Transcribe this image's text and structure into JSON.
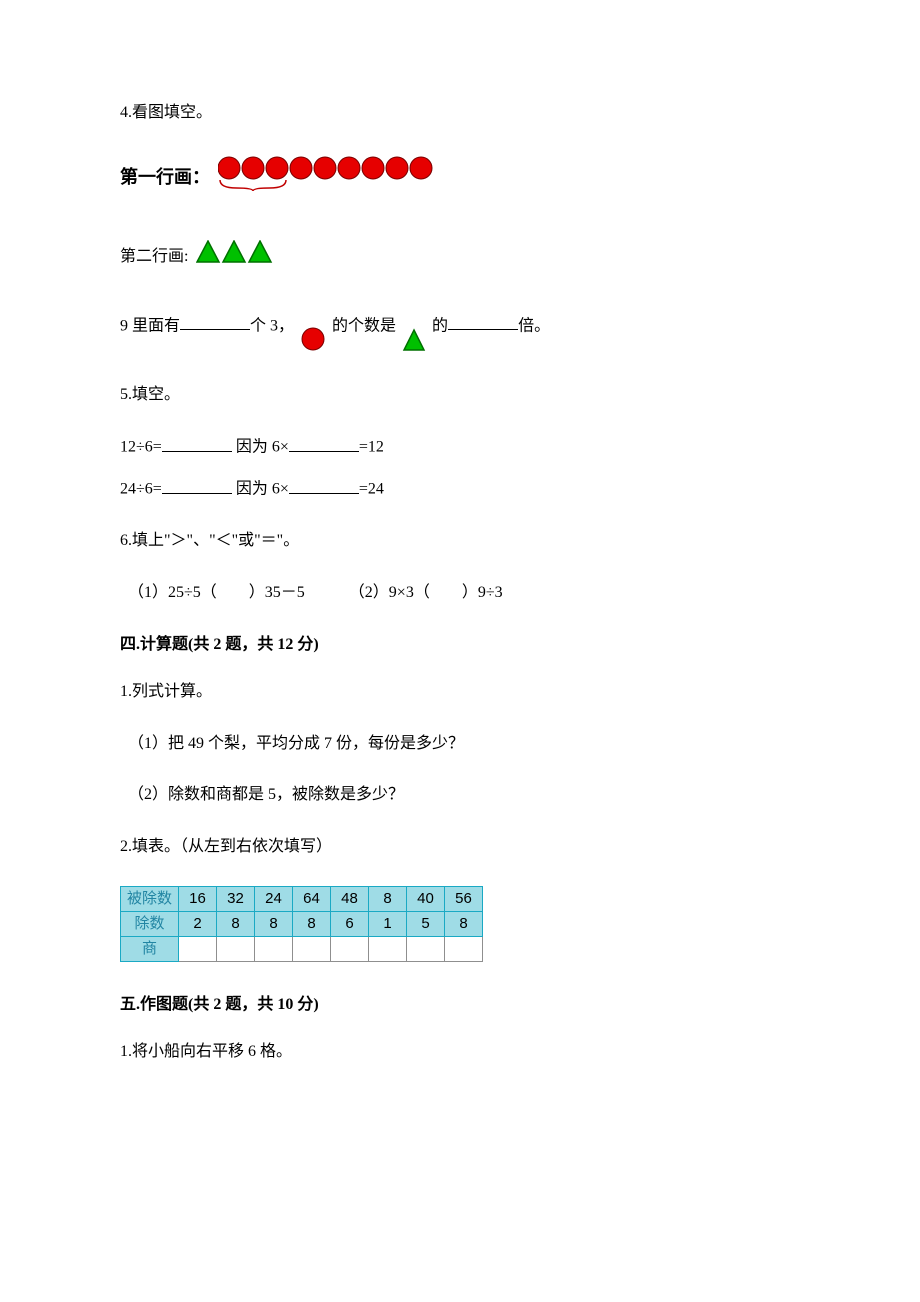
{
  "q4": {
    "number": "4.",
    "title": "看图填空。",
    "row1_label": "第一行画：",
    "row1_circle_count": 9,
    "row1_group_size": 3,
    "row2_label": "第二行画:",
    "row2_tri_count": 3,
    "sentence_p1": "9 里面有",
    "sentence_p2": "个 3，",
    "sentence_p3": "的个数是",
    "sentence_p4": "的",
    "sentence_p5": "倍。",
    "circle_fill": "#e60000",
    "circle_stroke": "#7a0000",
    "tri_fill": "#00c000",
    "tri_stroke": "#007000",
    "brace_color": "#c00000"
  },
  "q5": {
    "number": "5.",
    "title": "填空。",
    "line1_a": "12÷6=",
    "line1_b": "因为 6×",
    "line1_c": "=12",
    "line2_a": "24÷6=",
    "line2_b": "因为 6×",
    "line2_c": "=24"
  },
  "q6": {
    "number": "6.",
    "title": "填上\"＞\"、\"＜\"或\"＝\"。",
    "item1": "（1）25÷5（　　）35－5",
    "item2": "（2）9×3（　　）9÷3"
  },
  "section4": {
    "heading": "四.计算题(共 2 题，共 12 分)"
  },
  "s4q1": {
    "number": "1.",
    "title": "列式计算。",
    "item1": "（1）把 49 个梨，平均分成 7 份，每份是多少？",
    "item2": "（2）除数和商都是 5，被除数是多少？"
  },
  "s4q2": {
    "number": "2.",
    "title": "填表。（从左到右依次填写）",
    "table": {
      "row_headers": [
        "被除数",
        "除数",
        "商"
      ],
      "dividends": [
        "16",
        "32",
        "24",
        "64",
        "48",
        "8",
        "40",
        "56"
      ],
      "divisors": [
        "2",
        "8",
        "8",
        "8",
        "6",
        "1",
        "5",
        "8"
      ],
      "header_bg": "#9fdce6",
      "header_border": "#1aa9c4",
      "cell_bg": "#ffffff",
      "cell_border": "#8f8f8f",
      "header_text_color": "#2285a3"
    }
  },
  "section5": {
    "heading": "五.作图题(共 2 题，共 10 分)"
  },
  "s5q1": {
    "number": "1.",
    "title": "将小船向右平移 6 格。"
  }
}
